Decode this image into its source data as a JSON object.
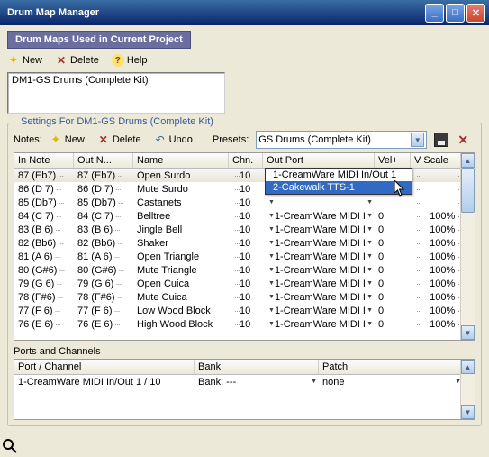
{
  "window": {
    "title": "Drum Map Manager"
  },
  "section1": {
    "header": "Drum Maps Used in Current Project",
    "toolbar": {
      "new": "New",
      "delete": "Delete",
      "help": "Help"
    },
    "list": [
      "DM1-GS Drums (Complete Kit)"
    ]
  },
  "section2": {
    "legend": "Settings For DM1-GS Drums (Complete Kit)",
    "notes_label": "Notes:",
    "toolbar": {
      "new": "New",
      "delete": "Delete",
      "undo": "Undo"
    },
    "presets_label": "Presets:",
    "preset_value": "GS Drums (Complete Kit)",
    "columns": {
      "innote": "In Note",
      "outnote": "Out N...",
      "name": "Name",
      "chn": "Chn.",
      "outport": "Out Port",
      "vel": "Vel+",
      "vscale": "V Scale"
    },
    "rows": [
      {
        "in": "87 (Eb7)",
        "out": "87 (Eb7)",
        "name": "Open Surdo",
        "chn": "10",
        "port": "",
        "vel": "",
        "vscale": ""
      },
      {
        "in": "86 (D 7)",
        "out": "86 (D 7)",
        "name": "Mute Surdo",
        "chn": "10",
        "port": "",
        "vel": "",
        "vscale": ""
      },
      {
        "in": "85 (Db7)",
        "out": "85 (Db7)",
        "name": "Castanets",
        "chn": "10",
        "port": "",
        "vel": "",
        "vscale": ""
      },
      {
        "in": "84 (C 7)",
        "out": "84 (C 7)",
        "name": "Belltree",
        "chn": "10",
        "port": "1-CreamWare MIDI I",
        "vel": "0",
        "vscale": "100%"
      },
      {
        "in": "83 (B 6)",
        "out": "83 (B 6)",
        "name": "Jingle Bell",
        "chn": "10",
        "port": "1-CreamWare MIDI I",
        "vel": "0",
        "vscale": "100%"
      },
      {
        "in": "82 (Bb6)",
        "out": "82 (Bb6)",
        "name": "Shaker",
        "chn": "10",
        "port": "1-CreamWare MIDI I",
        "vel": "0",
        "vscale": "100%"
      },
      {
        "in": "81 (A 6)",
        "out": "81 (A 6)",
        "name": "Open Triangle",
        "chn": "10",
        "port": "1-CreamWare MIDI I",
        "vel": "0",
        "vscale": "100%"
      },
      {
        "in": "80 (G#6)",
        "out": "80 (G#6)",
        "name": "Mute Triangle",
        "chn": "10",
        "port": "1-CreamWare MIDI I",
        "vel": "0",
        "vscale": "100%"
      },
      {
        "in": "79 (G 6)",
        "out": "79 (G 6)",
        "name": "Open Cuica",
        "chn": "10",
        "port": "1-CreamWare MIDI I",
        "vel": "0",
        "vscale": "100%"
      },
      {
        "in": "78 (F#6)",
        "out": "78 (F#6)",
        "name": "Mute Cuica",
        "chn": "10",
        "port": "1-CreamWare MIDI I",
        "vel": "0",
        "vscale": "100%"
      },
      {
        "in": "77 (F 6)",
        "out": "77 (F 6)",
        "name": "Low Wood Block",
        "chn": "10",
        "port": "1-CreamWare MIDI I",
        "vel": "0",
        "vscale": "100%"
      },
      {
        "in": "76 (E 6)",
        "out": "76 (E 6)",
        "name": "High Wood Block",
        "chn": "10",
        "port": "1-CreamWare MIDI I",
        "vel": "0",
        "vscale": "100%"
      }
    ],
    "dropdown": {
      "items": [
        "1-CreamWare MIDI In/Out 1",
        "2-Cakewalk TTS-1"
      ],
      "highlight_index": 1
    }
  },
  "ports": {
    "label": "Ports and Channels",
    "columns": {
      "pc": "Port / Channel",
      "bank": "Bank",
      "patch": "Patch"
    },
    "rows": [
      {
        "pc": "1-CreamWare MIDI In/Out 1 / 10",
        "bank": "Bank: ---",
        "patch": "none"
      }
    ]
  },
  "colors": {
    "titlebar_top": "#3a6ea5",
    "titlebar_bot": "#0a246a",
    "section_hdr": "#6a6fa0",
    "group_legend": "#3a5a9a",
    "highlight": "#316ac5",
    "body_bg": "#ece9d8"
  }
}
